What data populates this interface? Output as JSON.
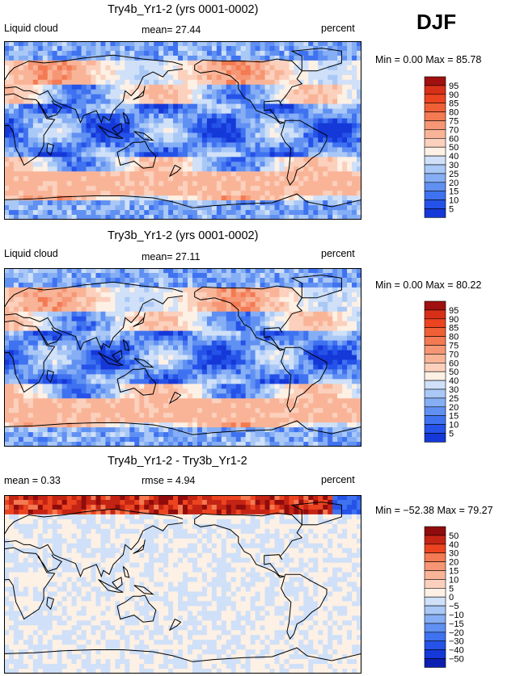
{
  "season": "DJF",
  "colors": {
    "ramp_abs": [
      "#0a0a80",
      "#0d1fb0",
      "#1538d8",
      "#2552e8",
      "#3f72f0",
      "#6090f2",
      "#86aef4",
      "#a9c8f6",
      "#cfe0f8",
      "#fdf0e4",
      "#fbd0bc",
      "#f9b498",
      "#f69674",
      "#f37a52",
      "#f06036",
      "#ec4420",
      "#d83018",
      "#a01010"
    ],
    "ramp_diff": [
      "#0a0a80",
      "#0d1fb0",
      "#1538d8",
      "#2552e8",
      "#3f72f0",
      "#6090f2",
      "#86aef4",
      "#a9c8f6",
      "#cfe0f8",
      "#fdf0e4",
      "#fbd0bc",
      "#f9b498",
      "#f69674",
      "#f37a52",
      "#ec4420",
      "#c42414",
      "#900c0c"
    ]
  },
  "panels": [
    {
      "title": "Try4b_Yr1-2 (yrs 0001-0002)",
      "left_label": "Liquid cloud",
      "center_label": "mean=   27.44",
      "right_label": "percent",
      "minmax": "Min =     0.00 Max =   85.78",
      "colorbar_labels": [
        "95",
        "90",
        "85",
        "80",
        "75",
        "70",
        "60",
        "50",
        "40",
        "30",
        "25",
        "20",
        "15",
        "10",
        "5"
      ]
    },
    {
      "title": "Try3b_Yr1-2 (yrs 0001-0002)",
      "left_label": "Liquid cloud",
      "center_label": "mean=   27.11",
      "right_label": "percent",
      "minmax": "Min =     0.00 Max =   80.22",
      "colorbar_labels": [
        "95",
        "90",
        "85",
        "80",
        "75",
        "70",
        "60",
        "50",
        "40",
        "30",
        "25",
        "20",
        "15",
        "10",
        "5"
      ]
    },
    {
      "title": "Try4b_Yr1-2 - Try3b_Yr1-2",
      "left_label": "mean =     0.33",
      "center_label": "rmse =     4.94",
      "right_label": "percent",
      "minmax": "Min = −52.38 Max =   79.27",
      "colorbar_labels": [
        "50",
        "40",
        "30",
        "20",
        "15",
        "10",
        "5",
        "0",
        "−5",
        "−10",
        "−15",
        "−20",
        "−30",
        "−40",
        "−50"
      ]
    }
  ],
  "chart_data": [
    {
      "type": "heatmap",
      "title": "Try4b_Yr1-2 (yrs 0001-0002)",
      "variable": "Liquid cloud",
      "units": "percent",
      "mean": 27.44,
      "min": 0.0,
      "max": 85.78,
      "levels": [
        5,
        10,
        15,
        20,
        25,
        30,
        40,
        50,
        60,
        70,
        75,
        80,
        85,
        90,
        95
      ]
    },
    {
      "type": "heatmap",
      "title": "Try3b_Yr1-2 (yrs 0001-0002)",
      "variable": "Liquid cloud",
      "units": "percent",
      "mean": 27.11,
      "min": 0.0,
      "max": 80.22,
      "levels": [
        5,
        10,
        15,
        20,
        25,
        30,
        40,
        50,
        60,
        70,
        75,
        80,
        85,
        90,
        95
      ]
    },
    {
      "type": "heatmap",
      "title": "Try4b_Yr1-2 - Try3b_Yr1-2",
      "units": "percent",
      "mean": 0.33,
      "rmse": 4.94,
      "min": -52.38,
      "max": 79.27,
      "levels": [
        -50,
        -40,
        -30,
        -20,
        -15,
        -10,
        -5,
        0,
        5,
        10,
        15,
        20,
        30,
        40,
        50
      ]
    }
  ]
}
